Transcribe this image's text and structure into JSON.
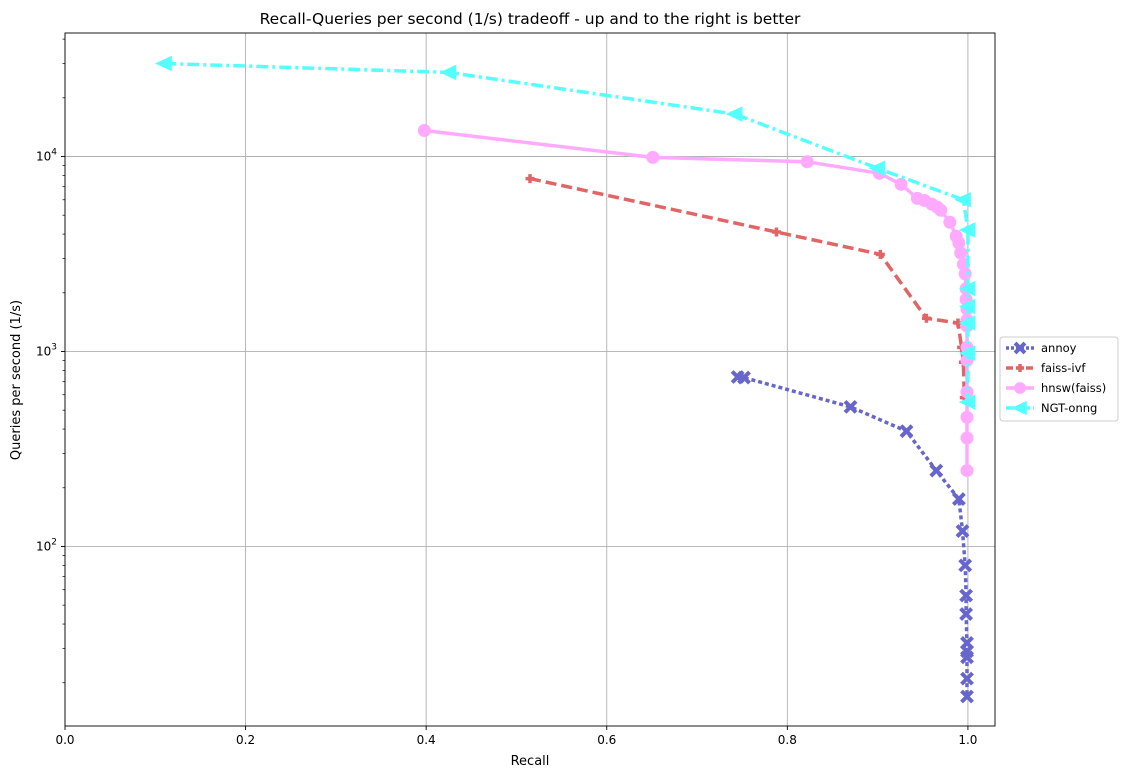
{
  "chart_data": {
    "type": "line",
    "title": "Recall-Queries per second (1/s) tradeoff - up and to the right is better",
    "xlabel": "Recall",
    "ylabel": "Queries per second (1/s)",
    "xlim": [
      0.0,
      1.03
    ],
    "ylim": [
      12,
      43000
    ],
    "yscale": "log",
    "grid": true,
    "legend_position": "right-outside",
    "x_ticks": [
      "0.0",
      "0.2",
      "0.4",
      "0.6",
      "0.8",
      "1.0"
    ],
    "y_ticks": [
      {
        "value": 100,
        "base": "10",
        "exp": "2"
      },
      {
        "value": 1000,
        "base": "10",
        "exp": "3"
      },
      {
        "value": 10000,
        "base": "10",
        "exp": "4"
      }
    ],
    "series": [
      {
        "name": "annoy",
        "color": "#6666cc",
        "dash": "dotted",
        "marker": "x",
        "points": [
          [
            0.745,
            740
          ],
          [
            0.752,
            735
          ],
          [
            0.87,
            520
          ],
          [
            0.932,
            390
          ],
          [
            0.965,
            245
          ],
          [
            0.99,
            175
          ],
          [
            0.994,
            120
          ],
          [
            0.997,
            80
          ],
          [
            0.998,
            56
          ],
          [
            0.998,
            45
          ],
          [
            0.999,
            32
          ],
          [
            0.999,
            29
          ],
          [
            0.999,
            27
          ],
          [
            0.999,
            21
          ],
          [
            0.999,
            17
          ]
        ]
      },
      {
        "name": "faiss-ivf",
        "color": "#e06666",
        "dash": "dashed",
        "marker": "plus",
        "points": [
          [
            0.515,
            7700
          ],
          [
            0.788,
            4100
          ],
          [
            0.903,
            3150
          ],
          [
            0.954,
            1480
          ],
          [
            0.989,
            1400
          ],
          [
            0.993,
            1050
          ],
          [
            0.995,
            880
          ],
          [
            0.996,
            580
          ]
        ]
      },
      {
        "name": "hnsw(faiss)",
        "color": "#ffaaff",
        "dash": "solid",
        "marker": "circle",
        "points": [
          [
            0.398,
            13600
          ],
          [
            0.651,
            9900
          ],
          [
            0.822,
            9400
          ],
          [
            0.902,
            8200
          ],
          [
            0.926,
            7200
          ],
          [
            0.944,
            6100
          ],
          [
            0.952,
            5950
          ],
          [
            0.96,
            5700
          ],
          [
            0.966,
            5500
          ],
          [
            0.97,
            5300
          ],
          [
            0.98,
            4600
          ],
          [
            0.987,
            3900
          ],
          [
            0.99,
            3600
          ],
          [
            0.992,
            3200
          ],
          [
            0.995,
            2800
          ],
          [
            0.997,
            2500
          ],
          [
            0.998,
            2100
          ],
          [
            0.998,
            1850
          ],
          [
            0.999,
            1650
          ],
          [
            0.999,
            1450
          ],
          [
            0.999,
            1350
          ],
          [
            0.999,
            1050
          ],
          [
            0.999,
            900
          ],
          [
            0.999,
            620
          ],
          [
            0.999,
            460
          ],
          [
            0.999,
            360
          ],
          [
            0.999,
            245
          ]
        ]
      },
      {
        "name": "NGT-onng",
        "color": "#55ffff",
        "dash": "dashdot",
        "marker": "triangle-left",
        "points": [
          [
            0.11,
            30000
          ],
          [
            0.425,
            27000
          ],
          [
            0.742,
            16500
          ],
          [
            0.9,
            8700
          ],
          [
            0.995,
            6000
          ],
          [
            1.0,
            4200
          ],
          [
            1.0,
            2100
          ],
          [
            1.0,
            1700
          ],
          [
            1.0,
            1400
          ],
          [
            1.0,
            980
          ],
          [
            1.0,
            550
          ]
        ]
      }
    ]
  }
}
